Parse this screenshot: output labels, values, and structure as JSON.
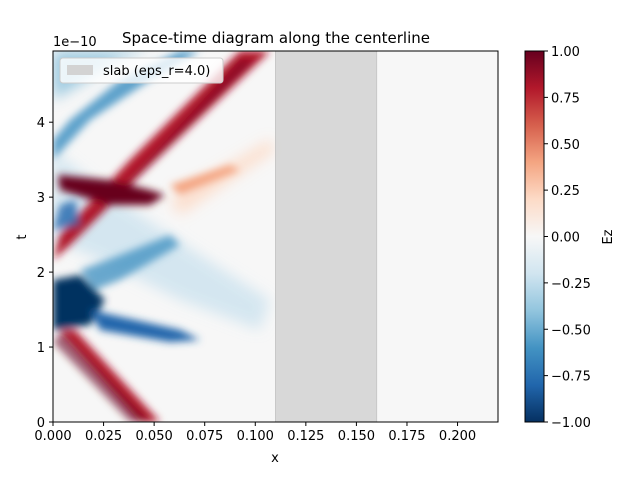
{
  "chart_data": {
    "type": "heatmap",
    "title": "Space-time diagram along the centerline",
    "xlabel": "x",
    "ylabel": "t",
    "y_scale_label": "1e−10",
    "xlim": [
      0,
      0.22
    ],
    "ylim": [
      0,
      4.95
    ],
    "x_ticks": [
      "0.000",
      "0.025",
      "0.050",
      "0.075",
      "0.100",
      "0.125",
      "0.150",
      "0.175",
      "0.200"
    ],
    "x_tick_values": [
      0,
      0.025,
      0.05,
      0.075,
      0.1,
      0.125,
      0.15,
      0.175,
      0.2
    ],
    "y_ticks": [
      "0",
      "1",
      "2",
      "3",
      "4"
    ],
    "y_tick_values": [
      0,
      1,
      2,
      3,
      4
    ],
    "colorbar": {
      "label": "Ez",
      "colormap": "RdBu_r",
      "range": [
        -1,
        1
      ],
      "ticks": [
        "1.00",
        "0.75",
        "0.50",
        "0.25",
        "0.00",
        "−0.25",
        "−0.50",
        "−0.75",
        "−1.00"
      ],
      "tick_values": [
        1,
        0.75,
        0.5,
        0.25,
        0,
        -0.25,
        -0.5,
        -0.75,
        -1
      ]
    },
    "slab": {
      "label": "slab (eps_r=4.0)",
      "x_range": [
        0.11,
        0.16
      ],
      "color": "#d3d3d3"
    },
    "legend_position": "top-left",
    "grid": false
  }
}
